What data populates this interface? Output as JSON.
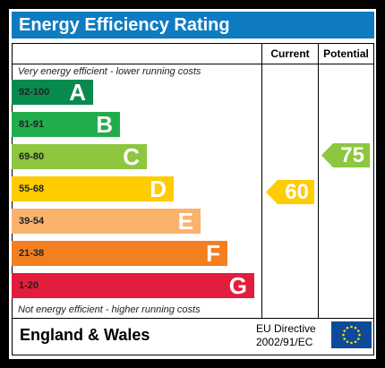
{
  "title": "Energy Efficiency Rating",
  "columns": {
    "current": "Current",
    "potential": "Potential"
  },
  "top_caption": "Very energy efficient - lower running costs",
  "bottom_caption": "Not energy efficient - higher running costs",
  "bands": [
    {
      "range": "92-100",
      "letter": "A",
      "color": "#078a4e"
    },
    {
      "range": "81-91",
      "letter": "B",
      "color": "#21ad4b"
    },
    {
      "range": "69-80",
      "letter": "C",
      "color": "#8dc63f"
    },
    {
      "range": "55-68",
      "letter": "D",
      "color": "#ffcc00"
    },
    {
      "range": "39-54",
      "letter": "E",
      "color": "#fbb26b"
    },
    {
      "range": "21-38",
      "letter": "F",
      "color": "#f47f20"
    },
    {
      "range": "1-20",
      "letter": "G",
      "color": "#e31d3c"
    }
  ],
  "current_rating": {
    "value": "60",
    "color": "#ffcc00"
  },
  "potential_rating": {
    "value": "75",
    "color": "#8dc63f"
  },
  "footer": {
    "region": "England & Wales",
    "directive_line1": "EU Directive",
    "directive_line2": "2002/91/EC",
    "flag_icon": "eu-flag-icon"
  }
}
